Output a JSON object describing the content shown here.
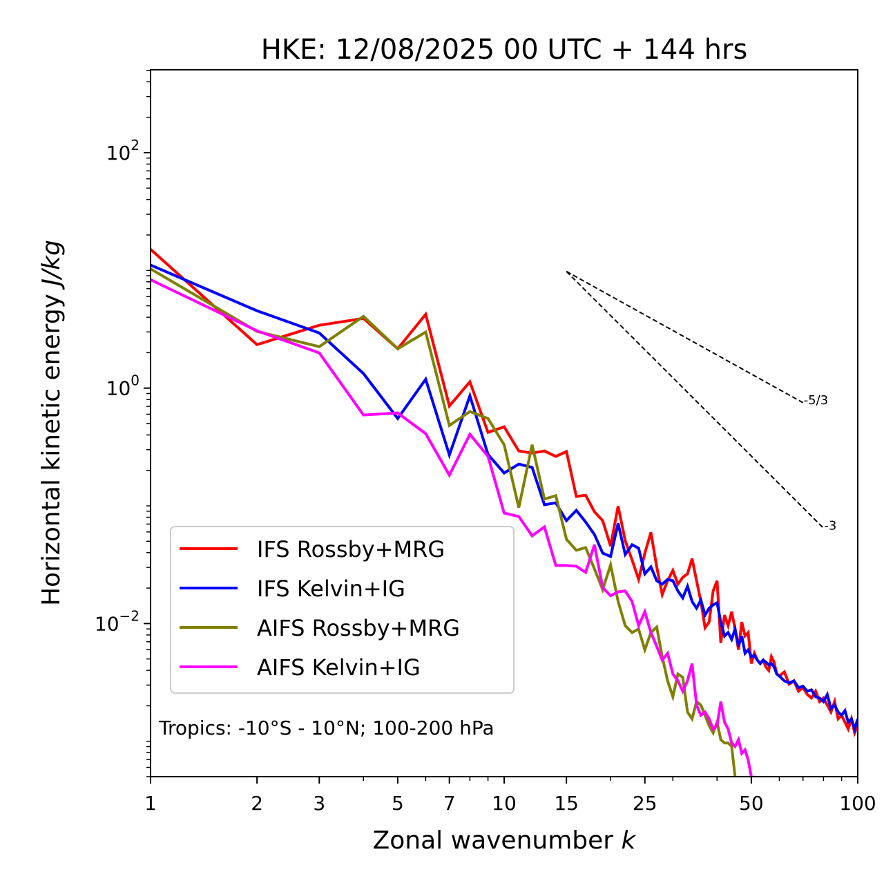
{
  "chart_data": {
    "type": "line",
    "title": "HKE: 12/08/2025 00 UTC + 144 hrs",
    "xlabel": "Zonal wavenumber",
    "xlabel_var": "k",
    "ylabel": "Horizontal kinetic energy",
    "ylabel_unit": "J/kg",
    "xscale": "log",
    "yscale": "log",
    "xlim": [
      1,
      100
    ],
    "ylim": [
      0.0005,
      506
    ],
    "grid": false,
    "legend_position": "lower-left",
    "x_ticks": [
      {
        "value": 1,
        "label": "1"
      },
      {
        "value": 2,
        "label": "2"
      },
      {
        "value": 3,
        "label": "3"
      },
      {
        "value": 5,
        "label": "5"
      },
      {
        "value": 7,
        "label": "7"
      },
      {
        "value": 10,
        "label": "10"
      },
      {
        "value": 15,
        "label": "15"
      },
      {
        "value": 25,
        "label": "25"
      },
      {
        "value": 50,
        "label": "50"
      },
      {
        "value": 100,
        "label": "100"
      }
    ],
    "x_minor_ticks": [
      4,
      6,
      8,
      9,
      20,
      30,
      40,
      60,
      70,
      80,
      90
    ],
    "y_ticks": [
      {
        "value": 100,
        "base": "10",
        "exp": "2"
      },
      {
        "value": 1,
        "base": "10",
        "exp": "0"
      },
      {
        "value": 0.01,
        "base": "10",
        "exp": "−2"
      }
    ],
    "annotation": "Tropics: -10°S - 10°N; 100-200 hPa",
    "reference_lines": [
      {
        "label": "-5/3",
        "slope": -1.6667,
        "k_start": 15,
        "e_start": 9.8,
        "k_end": 70
      },
      {
        "label": "-3",
        "slope": -3,
        "k_start": 15,
        "e_start": 9.8,
        "k_end": 80
      }
    ],
    "series": [
      {
        "name": "IFS Rossby+MRG",
        "color": "#ff0000",
        "k": [
          1,
          2,
          3,
          4,
          5,
          6,
          7,
          8,
          9,
          10,
          11,
          12,
          13,
          14,
          15,
          16,
          17,
          18,
          19,
          20,
          21,
          22,
          23,
          24,
          25,
          26,
          27,
          28,
          29,
          30,
          31,
          32,
          33,
          34,
          35,
          36,
          37,
          38,
          39,
          40,
          41,
          42,
          43,
          44,
          45,
          46,
          47,
          48,
          49,
          50,
          51,
          52,
          53,
          54,
          55,
          56,
          57,
          58,
          59,
          60,
          62,
          64,
          66,
          68,
          70,
          72,
          74,
          76,
          78,
          80,
          82,
          84,
          86,
          88,
          90,
          92,
          94,
          96,
          98,
          100
        ],
        "values": [
          15.1,
          2.34,
          3.42,
          3.91,
          2.16,
          4.24,
          0.704,
          1.13,
          0.421,
          0.469,
          0.292,
          0.281,
          0.292,
          0.263,
          0.289,
          0.12,
          0.123,
          0.0891,
          0.0748,
          0.0454,
          0.0993,
          0.0506,
          0.0347,
          0.0237,
          0.0396,
          0.0594,
          0.0303,
          0.0176,
          0.0231,
          0.0283,
          0.0216,
          0.0247,
          0.0264,
          0.0356,
          0.0231,
          0.0154,
          0.00922,
          0.0103,
          0.0189,
          0.0231,
          0.00685,
          0.0118,
          0.0096,
          0.0126,
          0.00898,
          0.00598,
          0.0103,
          0.00784,
          0.00839,
          0.00457,
          0.00559,
          0.00489,
          0.00457,
          0.00489,
          0.00427,
          0.00399,
          0.00523,
          0.00469,
          0.00373,
          0.00358,
          0.00388,
          0.00305,
          0.00326,
          0.00266,
          0.00285,
          0.00249,
          0.00233,
          0.00266,
          0.00217,
          0.00233,
          0.00203,
          0.00177,
          0.00217,
          0.00155,
          0.00166,
          0.00145,
          0.00127,
          0.00155,
          0.00118,
          0.00136
        ]
      },
      {
        "name": "IFS Kelvin+IG",
        "color": "#0000ff",
        "k": [
          1,
          2,
          3,
          4,
          5,
          6,
          7,
          8,
          9,
          10,
          11,
          12,
          13,
          14,
          15,
          16,
          17,
          18,
          19,
          20,
          21,
          22,
          23,
          24,
          25,
          26,
          27,
          28,
          29,
          30,
          31,
          32,
          33,
          34,
          35,
          36,
          37,
          38,
          39,
          40,
          41,
          42,
          43,
          44,
          45,
          46,
          47,
          48,
          49,
          50,
          51,
          52,
          53,
          54,
          55,
          56,
          57,
          58,
          59,
          60,
          62,
          64,
          66,
          68,
          70,
          72,
          74,
          76,
          78,
          80,
          82,
          84,
          86,
          88,
          90,
          92,
          94,
          96,
          98,
          100
        ],
        "values": [
          11.1,
          4.54,
          2.94,
          1.33,
          0.552,
          1.19,
          0.27,
          0.861,
          0.273,
          0.19,
          0.226,
          0.212,
          0.102,
          0.106,
          0.0748,
          0.0916,
          0.0728,
          0.0571,
          0.0396,
          0.0371,
          0.0709,
          0.0386,
          0.0467,
          0.0436,
          0.0264,
          0.0303,
          0.0231,
          0.0216,
          0.0237,
          0.0231,
          0.0189,
          0.0165,
          0.0207,
          0.0154,
          0.0135,
          0.0158,
          0.0118,
          0.0135,
          0.0144,
          0.015,
          0.0103,
          0.00784,
          0.00839,
          0.00733,
          0.00898,
          0.0064,
          0.00784,
          0.00559,
          0.00598,
          0.00523,
          0.00537,
          0.00489,
          0.00457,
          0.00489,
          0.00469,
          0.00445,
          0.00457,
          0.00427,
          0.00373,
          0.00358,
          0.00326,
          0.00313,
          0.00326,
          0.00285,
          0.00293,
          0.00266,
          0.00273,
          0.00239,
          0.00233,
          0.00217,
          0.00249,
          0.0019,
          0.00203,
          0.00177,
          0.00166,
          0.00182,
          0.00145,
          0.00155,
          0.00127,
          0.00155
        ]
      },
      {
        "name": "AIFS Rossby+MRG",
        "color": "#808000",
        "k": [
          1,
          2,
          3,
          4,
          5,
          6,
          7,
          8,
          9,
          10,
          11,
          12,
          13,
          14,
          15,
          16,
          17,
          18,
          19,
          20,
          21,
          22,
          23,
          24,
          25,
          26,
          27,
          28,
          29,
          30,
          31,
          32,
          33,
          34,
          35,
          36,
          37,
          38,
          39,
          40,
          41,
          42,
          43,
          44,
          45
        ],
        "values": [
          10.3,
          3.03,
          2.25,
          4.07,
          2.16,
          2.99,
          0.482,
          0.632,
          0.552,
          0.33,
          0.0967,
          0.33,
          0.114,
          0.122,
          0.052,
          0.0419,
          0.0442,
          0.0291,
          0.0194,
          0.0315,
          0.0154,
          0.0096,
          0.00839,
          0.00898,
          0.00598,
          0.00839,
          0.00935,
          0.00523,
          0.00326,
          0.00239,
          0.00373,
          0.00349,
          0.00177,
          0.00155,
          0.00217,
          0.00203,
          0.00166,
          0.00136,
          0.00118,
          0.00145,
          0.00103,
          0.000967,
          0.000967,
          0.000904,
          0.000499
        ]
      },
      {
        "name": "AIFS Kelvin+IG",
        "color": "#ff00ff",
        "k": [
          1,
          2,
          3,
          4,
          5,
          6,
          7,
          8,
          9,
          10,
          11,
          12,
          13,
          14,
          15,
          16,
          17,
          18,
          19,
          20,
          21,
          22,
          23,
          24,
          25,
          26,
          27,
          28,
          29,
          30,
          31,
          32,
          33,
          34,
          35,
          36,
          37,
          38,
          39,
          40,
          41,
          42,
          43,
          44,
          45,
          46,
          47,
          48,
          49,
          50
        ],
        "values": [
          8.33,
          3.07,
          1.99,
          0.591,
          0.615,
          0.41,
          0.182,
          0.405,
          0.263,
          0.0868,
          0.0811,
          0.0556,
          0.0662,
          0.0311,
          0.0311,
          0.0307,
          0.0272,
          0.0467,
          0.0202,
          0.0172,
          0.0186,
          0.0189,
          0.0154,
          0.0096,
          0.0126,
          0.00839,
          0.0064,
          0.00489,
          0.00559,
          0.00373,
          0.00326,
          0.00266,
          0.00326,
          0.00457,
          0.00203,
          0.00166,
          0.00177,
          0.00155,
          0.00127,
          0.00136,
          0.00217,
          0.00145,
          0.00127,
          0.000967,
          0.000904,
          0.00103,
          0.000789,
          0.000845,
          0.00069,
          0.000499
        ]
      }
    ]
  }
}
